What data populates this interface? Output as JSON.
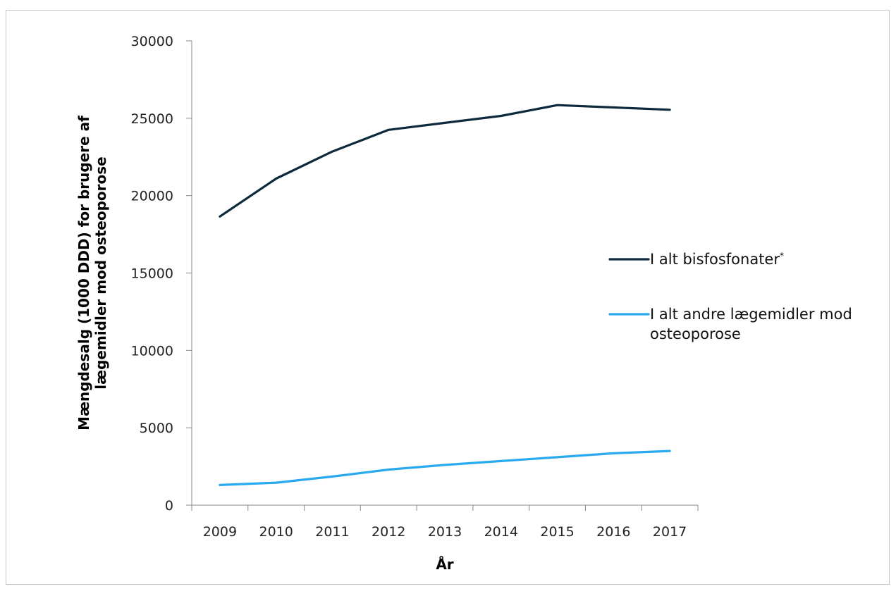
{
  "chart_data": {
    "type": "line",
    "x": [
      "2009",
      "2010",
      "2011",
      "2012",
      "2013",
      "2014",
      "2015",
      "2016",
      "2017"
    ],
    "series": [
      {
        "name": "I alt bisfosfonater",
        "name_superscript": "*",
        "color": "#0d2a3d",
        "values": [
          18650,
          21100,
          22850,
          24250,
          24700,
          25150,
          25850,
          25700,
          25550
        ]
      },
      {
        "name": "I alt andre lægemidler mod osteoporose",
        "color": "#29a9f0",
        "values": [
          1300,
          1450,
          1850,
          2300,
          2600,
          2850,
          3100,
          3350,
          3500
        ]
      }
    ],
    "xlabel": "År",
    "ylabel": "Mængdesalg (1000 DDD) for brugere af lægemidler mod osteoporose",
    "ylabel_lines": [
      "Mængdesalg (1000 DDD) for brugere af",
      "lægemidler mod osteoporose"
    ],
    "legend_lines": [
      [
        "I alt bisfosfonater"
      ],
      [
        "I alt andre lægemidler mod",
        "osteoporose"
      ]
    ],
    "yticks": [
      "0",
      "5000",
      "10000",
      "15000",
      "20000",
      "25000",
      "30000"
    ],
    "ylim": [
      0,
      30000
    ],
    "grid": false,
    "legend_position": "right"
  }
}
